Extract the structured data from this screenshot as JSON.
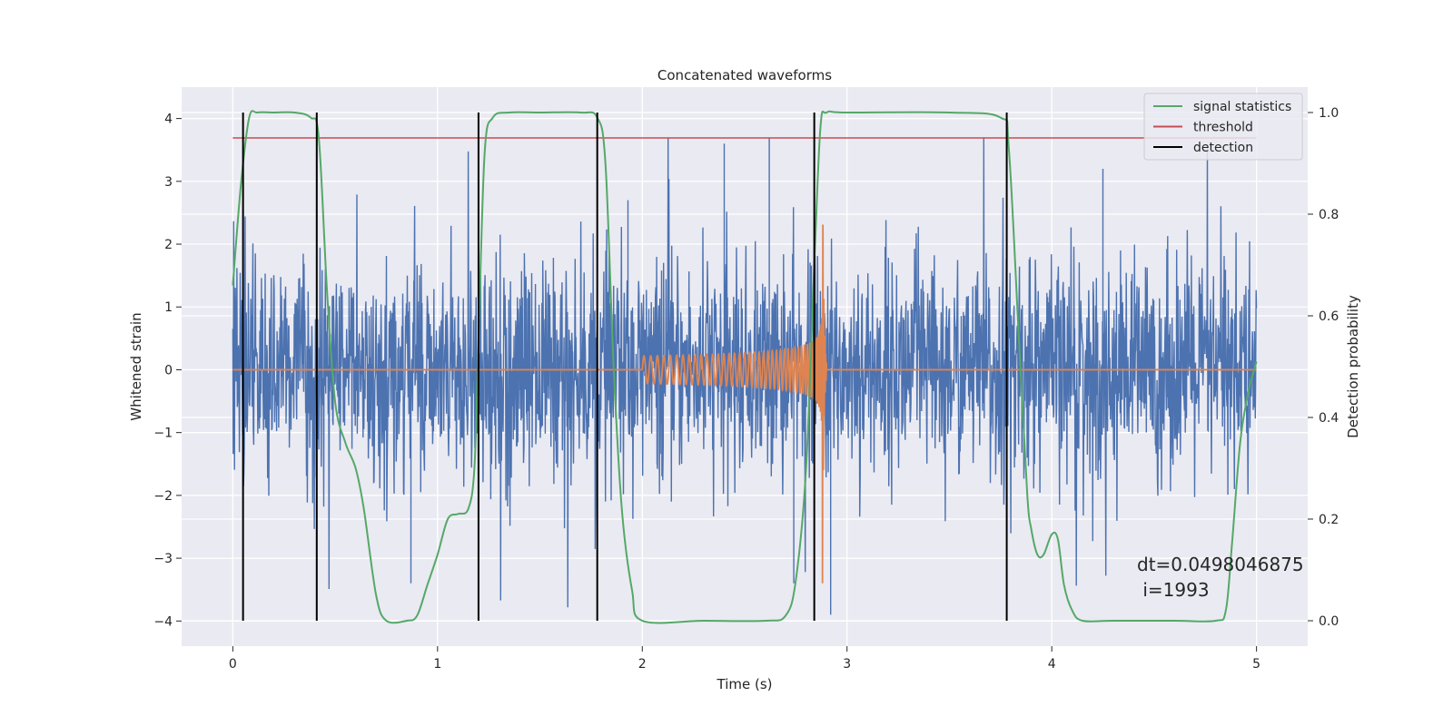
{
  "chart_data": {
    "type": "line",
    "title": "Concatenated waveforms",
    "xlabel": "Time (s)",
    "ylabel": "Whitened strain",
    "y2label": "Detection probability",
    "xlim": [
      -0.25,
      5.25
    ],
    "ylim": [
      -4.4,
      4.5
    ],
    "y2lim": [
      -0.05,
      1.05
    ],
    "xticks": [
      0,
      1,
      2,
      3,
      4,
      5
    ],
    "yticks": [
      -4,
      -3,
      -2,
      -1,
      0,
      1,
      2,
      3,
      4
    ],
    "y2ticks": [
      0.0,
      0.2,
      0.4,
      0.6,
      0.8,
      1.0
    ],
    "grid": true,
    "legend_position": "top-right",
    "colors": {
      "strain": "#4c72b0",
      "template": "#dd8452",
      "signal_statistics": "#55a868",
      "threshold": "#c44e52",
      "detection": "#000000",
      "background": "#eaeaf2",
      "grid": "#ffffff"
    },
    "series": [
      {
        "name": "signal statistics",
        "axis": "right",
        "x": [
          0.0,
          0.04,
          0.08,
          0.12,
          0.2,
          0.3,
          0.38,
          0.42,
          0.46,
          0.5,
          0.55,
          0.6,
          0.64,
          0.7,
          0.75,
          0.85,
          0.9,
          0.95,
          1.0,
          1.05,
          1.1,
          1.15,
          1.18,
          1.2,
          1.23,
          1.27,
          1.35,
          1.5,
          1.7,
          1.78,
          1.82,
          1.86,
          1.9,
          1.95,
          2.0,
          2.3,
          2.6,
          2.7,
          2.75,
          2.8,
          2.84,
          2.87,
          2.9,
          3.0,
          3.5,
          3.75,
          3.79,
          3.84,
          3.88,
          3.9,
          3.93,
          3.96,
          4.0,
          4.03,
          4.06,
          4.1,
          4.15,
          4.3,
          4.6,
          4.8,
          4.85,
          4.88,
          4.92,
          4.96,
          5.0
        ],
        "values": [
          0.66,
          0.86,
          0.99,
          1.0,
          1.0,
          1.0,
          0.99,
          0.95,
          0.65,
          0.43,
          0.35,
          0.3,
          0.22,
          0.05,
          0.0,
          0.0,
          0.01,
          0.07,
          0.13,
          0.2,
          0.21,
          0.22,
          0.3,
          0.55,
          0.92,
          0.99,
          1.0,
          1.0,
          1.0,
          0.99,
          0.9,
          0.5,
          0.22,
          0.06,
          0.0,
          0.0,
          0.0,
          0.01,
          0.08,
          0.3,
          0.7,
          0.97,
          1.0,
          1.0,
          1.0,
          0.99,
          0.93,
          0.55,
          0.25,
          0.18,
          0.13,
          0.13,
          0.17,
          0.16,
          0.07,
          0.02,
          0.0,
          0.0,
          0.0,
          0.0,
          0.02,
          0.15,
          0.35,
          0.45,
          0.51
        ]
      },
      {
        "name": "threshold",
        "axis": "right",
        "x": [
          0.0,
          5.0
        ],
        "values": [
          0.95,
          0.95
        ]
      },
      {
        "name": "detection",
        "axis": "right",
        "type": "vlines",
        "x": [
          0.05,
          0.41,
          1.2,
          1.78,
          2.84,
          3.78
        ],
        "ymin": 0.0,
        "ymax": 1.0
      }
    ],
    "strain": {
      "axis": "left",
      "x_range": [
        0.0,
        5.0
      ],
      "sample_step": 0.002,
      "amplitude_std": 1.0,
      "extremes": {
        "max": 3.7,
        "min": -3.9
      }
    },
    "template": {
      "axis": "left",
      "x_range": [
        0.0,
        5.0
      ],
      "chirp_start": 2.0,
      "merger_time": 2.88,
      "ringdown_end": 2.9,
      "start_amplitude": 0.22,
      "peak_amplitude": 3.4
    },
    "annotation": {
      "line1": "dt=0.0498046875",
      "line2": " i=1993"
    }
  }
}
